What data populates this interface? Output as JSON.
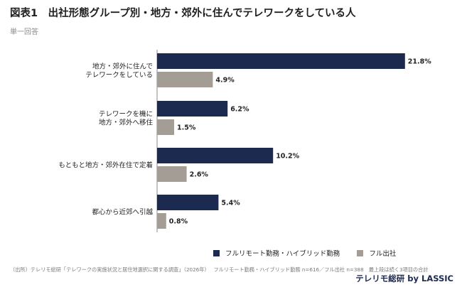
{
  "title": "図表1　出社形態グループ別・地方・郊外に住んでテレワークをしている人",
  "subtitle": "単一回答",
  "legend": {
    "remote": "フルリモート勤務・ハイブリッド勤務",
    "office": "フル出社"
  },
  "footnote": "（出所）テレリモ総研「テレワークの実施状況と居住地選択に関する調査」（2026年）　 フルリモート勤務・ハイブリッド勤務 n=616／フル出社 n=388　最上段は続く3項目の合計",
  "brand": "テレリモ総研 by LASSIC",
  "colors": {
    "remote": "#1c2a4f",
    "office": "#a39d95",
    "axis": "#888888"
  },
  "chart_data": {
    "type": "bar",
    "orientation": "horizontal",
    "categories": [
      [
        "地方・郊外に住んで",
        "テレワークをしている"
      ],
      [
        "テレワークを機に",
        "地方・郊外へ移住"
      ],
      [
        "もともと地方・郊外在住で定着"
      ],
      [
        "都心から近郊へ引越"
      ]
    ],
    "series": [
      {
        "name": "フルリモート勤務・ハイブリッド勤務",
        "values": [
          21.8,
          6.2,
          10.2,
          5.4
        ],
        "labels": [
          "21.8%",
          "6.2%",
          "10.2%",
          "5.4%"
        ]
      },
      {
        "name": "フル出社",
        "values": [
          4.9,
          1.5,
          2.6,
          0.8
        ],
        "labels": [
          "4.9%",
          "1.5%",
          "2.6%",
          "0.8%"
        ]
      }
    ],
    "xlim": [
      0,
      22
    ],
    "grid": false,
    "legend_position": "bottom-right"
  }
}
